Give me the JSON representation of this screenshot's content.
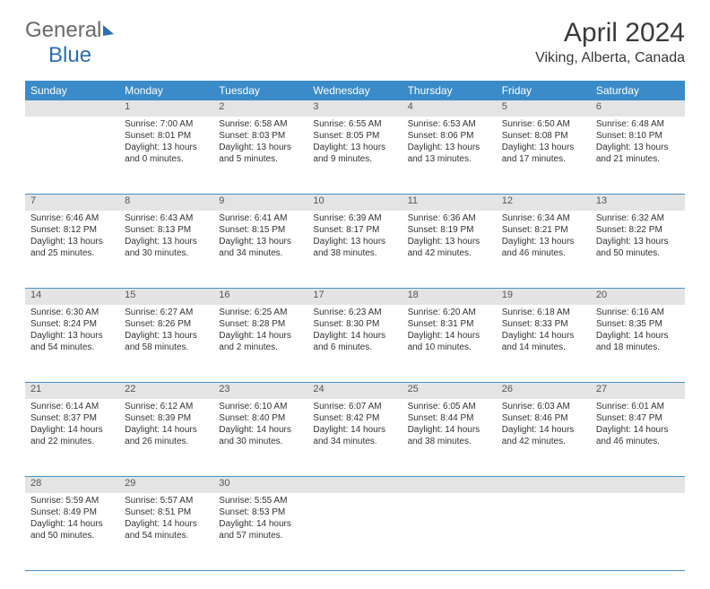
{
  "logo": {
    "part1": "General",
    "part2": "Blue"
  },
  "title": "April 2024",
  "location": "Viking, Alberta, Canada",
  "colors": {
    "header_bg": "#3b8bc9",
    "daynum_bg": "#e4e4e4",
    "rule": "#4a8fc4",
    "text": "#333333"
  },
  "weekdays": [
    "Sunday",
    "Monday",
    "Tuesday",
    "Wednesday",
    "Thursday",
    "Friday",
    "Saturday"
  ],
  "weeks": [
    [
      {
        "n": "",
        "sr": "",
        "ss": "",
        "dl": ""
      },
      {
        "n": "1",
        "sr": "Sunrise: 7:00 AM",
        "ss": "Sunset: 8:01 PM",
        "dl": "Daylight: 13 hours and 0 minutes."
      },
      {
        "n": "2",
        "sr": "Sunrise: 6:58 AM",
        "ss": "Sunset: 8:03 PM",
        "dl": "Daylight: 13 hours and 5 minutes."
      },
      {
        "n": "3",
        "sr": "Sunrise: 6:55 AM",
        "ss": "Sunset: 8:05 PM",
        "dl": "Daylight: 13 hours and 9 minutes."
      },
      {
        "n": "4",
        "sr": "Sunrise: 6:53 AM",
        "ss": "Sunset: 8:06 PM",
        "dl": "Daylight: 13 hours and 13 minutes."
      },
      {
        "n": "5",
        "sr": "Sunrise: 6:50 AM",
        "ss": "Sunset: 8:08 PM",
        "dl": "Daylight: 13 hours and 17 minutes."
      },
      {
        "n": "6",
        "sr": "Sunrise: 6:48 AM",
        "ss": "Sunset: 8:10 PM",
        "dl": "Daylight: 13 hours and 21 minutes."
      }
    ],
    [
      {
        "n": "7",
        "sr": "Sunrise: 6:46 AM",
        "ss": "Sunset: 8:12 PM",
        "dl": "Daylight: 13 hours and 25 minutes."
      },
      {
        "n": "8",
        "sr": "Sunrise: 6:43 AM",
        "ss": "Sunset: 8:13 PM",
        "dl": "Daylight: 13 hours and 30 minutes."
      },
      {
        "n": "9",
        "sr": "Sunrise: 6:41 AM",
        "ss": "Sunset: 8:15 PM",
        "dl": "Daylight: 13 hours and 34 minutes."
      },
      {
        "n": "10",
        "sr": "Sunrise: 6:39 AM",
        "ss": "Sunset: 8:17 PM",
        "dl": "Daylight: 13 hours and 38 minutes."
      },
      {
        "n": "11",
        "sr": "Sunrise: 6:36 AM",
        "ss": "Sunset: 8:19 PM",
        "dl": "Daylight: 13 hours and 42 minutes."
      },
      {
        "n": "12",
        "sr": "Sunrise: 6:34 AM",
        "ss": "Sunset: 8:21 PM",
        "dl": "Daylight: 13 hours and 46 minutes."
      },
      {
        "n": "13",
        "sr": "Sunrise: 6:32 AM",
        "ss": "Sunset: 8:22 PM",
        "dl": "Daylight: 13 hours and 50 minutes."
      }
    ],
    [
      {
        "n": "14",
        "sr": "Sunrise: 6:30 AM",
        "ss": "Sunset: 8:24 PM",
        "dl": "Daylight: 13 hours and 54 minutes."
      },
      {
        "n": "15",
        "sr": "Sunrise: 6:27 AM",
        "ss": "Sunset: 8:26 PM",
        "dl": "Daylight: 13 hours and 58 minutes."
      },
      {
        "n": "16",
        "sr": "Sunrise: 6:25 AM",
        "ss": "Sunset: 8:28 PM",
        "dl": "Daylight: 14 hours and 2 minutes."
      },
      {
        "n": "17",
        "sr": "Sunrise: 6:23 AM",
        "ss": "Sunset: 8:30 PM",
        "dl": "Daylight: 14 hours and 6 minutes."
      },
      {
        "n": "18",
        "sr": "Sunrise: 6:20 AM",
        "ss": "Sunset: 8:31 PM",
        "dl": "Daylight: 14 hours and 10 minutes."
      },
      {
        "n": "19",
        "sr": "Sunrise: 6:18 AM",
        "ss": "Sunset: 8:33 PM",
        "dl": "Daylight: 14 hours and 14 minutes."
      },
      {
        "n": "20",
        "sr": "Sunrise: 6:16 AM",
        "ss": "Sunset: 8:35 PM",
        "dl": "Daylight: 14 hours and 18 minutes."
      }
    ],
    [
      {
        "n": "21",
        "sr": "Sunrise: 6:14 AM",
        "ss": "Sunset: 8:37 PM",
        "dl": "Daylight: 14 hours and 22 minutes."
      },
      {
        "n": "22",
        "sr": "Sunrise: 6:12 AM",
        "ss": "Sunset: 8:39 PM",
        "dl": "Daylight: 14 hours and 26 minutes."
      },
      {
        "n": "23",
        "sr": "Sunrise: 6:10 AM",
        "ss": "Sunset: 8:40 PM",
        "dl": "Daylight: 14 hours and 30 minutes."
      },
      {
        "n": "24",
        "sr": "Sunrise: 6:07 AM",
        "ss": "Sunset: 8:42 PM",
        "dl": "Daylight: 14 hours and 34 minutes."
      },
      {
        "n": "25",
        "sr": "Sunrise: 6:05 AM",
        "ss": "Sunset: 8:44 PM",
        "dl": "Daylight: 14 hours and 38 minutes."
      },
      {
        "n": "26",
        "sr": "Sunrise: 6:03 AM",
        "ss": "Sunset: 8:46 PM",
        "dl": "Daylight: 14 hours and 42 minutes."
      },
      {
        "n": "27",
        "sr": "Sunrise: 6:01 AM",
        "ss": "Sunset: 8:47 PM",
        "dl": "Daylight: 14 hours and 46 minutes."
      }
    ],
    [
      {
        "n": "28",
        "sr": "Sunrise: 5:59 AM",
        "ss": "Sunset: 8:49 PM",
        "dl": "Daylight: 14 hours and 50 minutes."
      },
      {
        "n": "29",
        "sr": "Sunrise: 5:57 AM",
        "ss": "Sunset: 8:51 PM",
        "dl": "Daylight: 14 hours and 54 minutes."
      },
      {
        "n": "30",
        "sr": "Sunrise: 5:55 AM",
        "ss": "Sunset: 8:53 PM",
        "dl": "Daylight: 14 hours and 57 minutes."
      },
      {
        "n": "",
        "sr": "",
        "ss": "",
        "dl": ""
      },
      {
        "n": "",
        "sr": "",
        "ss": "",
        "dl": ""
      },
      {
        "n": "",
        "sr": "",
        "ss": "",
        "dl": ""
      },
      {
        "n": "",
        "sr": "",
        "ss": "",
        "dl": ""
      }
    ]
  ]
}
